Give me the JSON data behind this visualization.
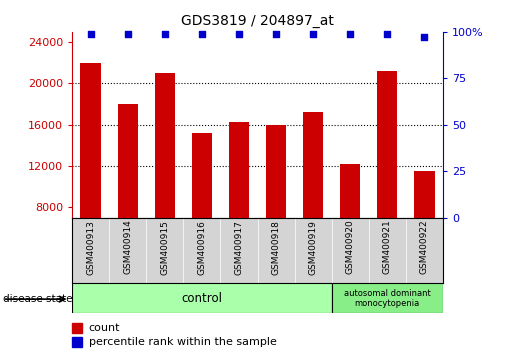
{
  "title": "GDS3819 / 204897_at",
  "samples": [
    "GSM400913",
    "GSM400914",
    "GSM400915",
    "GSM400916",
    "GSM400917",
    "GSM400918",
    "GSM400919",
    "GSM400920",
    "GSM400921",
    "GSM400922"
  ],
  "counts": [
    22000,
    18000,
    21000,
    15200,
    16300,
    16000,
    17200,
    12200,
    21200,
    11500
  ],
  "percentile_ranks": [
    99,
    99,
    99,
    99,
    99,
    99,
    99,
    99,
    99,
    97
  ],
  "ylim_left": [
    7000,
    25000
  ],
  "ylim_right": [
    0,
    100
  ],
  "yticks_left": [
    8000,
    12000,
    16000,
    20000,
    24000
  ],
  "yticks_right": [
    0,
    25,
    50,
    75,
    100
  ],
  "bar_color": "#cc0000",
  "dot_color": "#0000cc",
  "bg_color": "#ffffff",
  "tick_area_color": "#d4d4d4",
  "control_color": "#aaffaa",
  "disease_color": "#88ee88",
  "control_label": "control",
  "disease_label": "autosomal dominant\nmonocytopenia",
  "legend_count_label": "count",
  "legend_percentile_label": "percentile rank within the sample",
  "disease_state_label": "disease state"
}
